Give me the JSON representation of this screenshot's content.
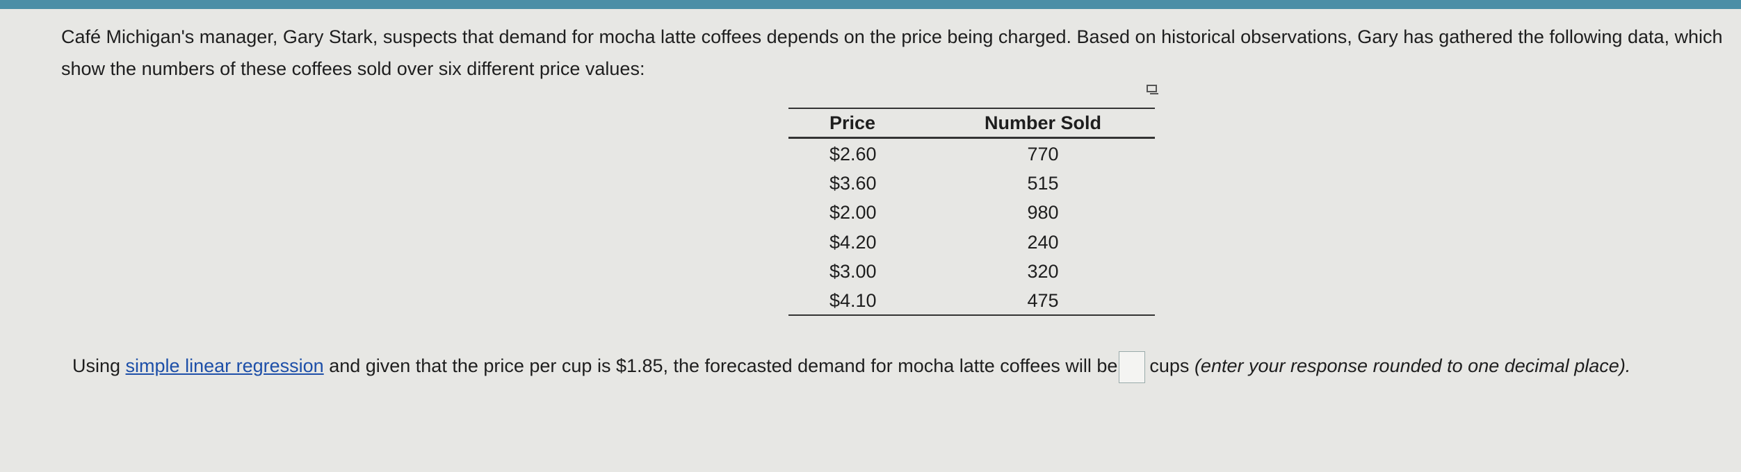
{
  "intro": "Café Michigan's manager, Gary Stark, suspects that demand for mocha latte coffees depends on the price being charged. Based on historical observations, Gary has gathered the following data, which show the numbers of these coffees sold over six different price values:",
  "table": {
    "headers": [
      "Price",
      "Number Sold"
    ],
    "rows": [
      [
        "$2.60",
        770
      ],
      [
        "$3.60",
        515
      ],
      [
        "$2.00",
        980
      ],
      [
        "$4.20",
        240
      ],
      [
        "$3.00",
        320
      ],
      [
        "$4.10",
        475
      ]
    ]
  },
  "question": {
    "before_link": "Using",
    "link": "simple linear regression",
    "after_link": "and given that the price per cup is $1.85, the forecasted demand for mocha latte coffees will be",
    "after_box": "cups",
    "instruction": "(enter your response rounded to one decimal place)."
  }
}
